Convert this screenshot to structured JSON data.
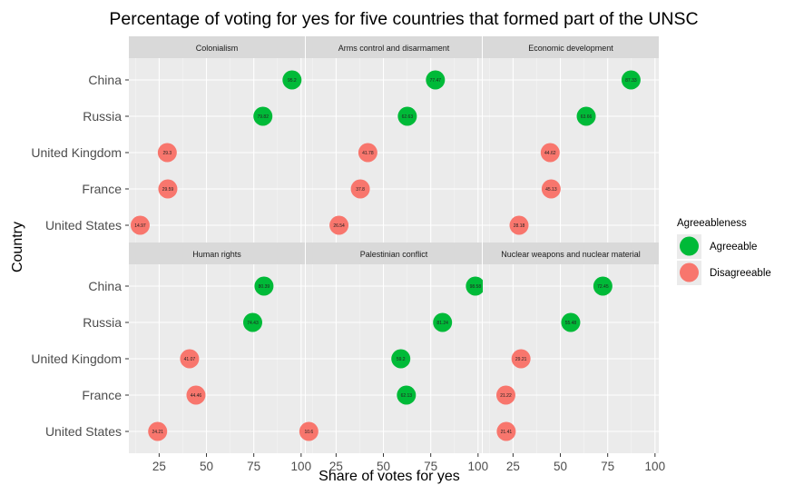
{
  "chart_data": {
    "type": "scatter",
    "title": "Percentage of voting for yes for five countries that formed part of the UNSC",
    "xlabel": "Share of votes for yes",
    "ylabel": "Country",
    "countries": [
      "China",
      "Russia",
      "United Kingdom",
      "France",
      "United States"
    ],
    "x_ticks": [
      25,
      50,
      75,
      100
    ],
    "xlim": [
      9,
      102
    ],
    "legend": {
      "title": "Agreeableness",
      "position": "right",
      "entries": [
        {
          "label": "Agreeable",
          "color": "#00ba38"
        },
        {
          "label": "Disagreeable",
          "color": "#f8766d"
        }
      ]
    },
    "panels": [
      {
        "title": "Colonialism",
        "points": [
          {
            "country": "China",
            "value": 95.2,
            "label": "95.2",
            "group": "Agreeable"
          },
          {
            "country": "Russia",
            "value": 79.82,
            "label": "79.82",
            "group": "Agreeable"
          },
          {
            "country": "United Kingdom",
            "value": 29.3,
            "label": "29.3",
            "group": "Disagreeable"
          },
          {
            "country": "France",
            "value": 29.59,
            "label": "29.59",
            "group": "Disagreeable"
          },
          {
            "country": "United States",
            "value": 14.97,
            "label": "14.97",
            "group": "Disagreeable"
          }
        ]
      },
      {
        "title": "Arms control and disarmament",
        "points": [
          {
            "country": "China",
            "value": 77.47,
            "label": "77.47",
            "group": "Agreeable"
          },
          {
            "country": "Russia",
            "value": 62.63,
            "label": "62.63",
            "group": "Agreeable"
          },
          {
            "country": "United Kingdom",
            "value": 41.78,
            "label": "41.78",
            "group": "Disagreeable"
          },
          {
            "country": "France",
            "value": 37.8,
            "label": "37.8",
            "group": "Disagreeable"
          },
          {
            "country": "United States",
            "value": 26.54,
            "label": "26.54",
            "group": "Disagreeable"
          }
        ]
      },
      {
        "title": "Economic development",
        "points": [
          {
            "country": "China",
            "value": 87.33,
            "label": "87.33",
            "group": "Agreeable"
          },
          {
            "country": "Russia",
            "value": 63.66,
            "label": "63.66",
            "group": "Agreeable"
          },
          {
            "country": "United Kingdom",
            "value": 44.62,
            "label": "44.62",
            "group": "Disagreeable"
          },
          {
            "country": "France",
            "value": 45.13,
            "label": "45.13",
            "group": "Disagreeable"
          },
          {
            "country": "United States",
            "value": 28.18,
            "label": "28.18",
            "group": "Disagreeable"
          }
        ]
      },
      {
        "title": "Human rights",
        "points": [
          {
            "country": "China",
            "value": 80.39,
            "label": "80.39",
            "group": "Agreeable"
          },
          {
            "country": "Russia",
            "value": 74.43,
            "label": "74.43",
            "group": "Agreeable"
          },
          {
            "country": "United Kingdom",
            "value": 41.07,
            "label": "41.07",
            "group": "Disagreeable"
          },
          {
            "country": "France",
            "value": 44.46,
            "label": "44.46",
            "group": "Disagreeable"
          },
          {
            "country": "United States",
            "value": 24.21,
            "label": "24.21",
            "group": "Disagreeable"
          }
        ]
      },
      {
        "title": "Palestinian conflict",
        "points": [
          {
            "country": "China",
            "value": 98.58,
            "label": "98.58",
            "group": "Agreeable"
          },
          {
            "country": "Russia",
            "value": 81.24,
            "label": "81.24",
            "group": "Agreeable"
          },
          {
            "country": "United Kingdom",
            "value": 59.2,
            "label": "59.2",
            "group": "Agreeable"
          },
          {
            "country": "France",
            "value": 62.13,
            "label": "62.13",
            "group": "Agreeable"
          },
          {
            "country": "United States",
            "value": 10.6,
            "label": "10.6",
            "group": "Disagreeable"
          }
        ]
      },
      {
        "title": "Nuclear weapons and nuclear material",
        "points": [
          {
            "country": "China",
            "value": 72.45,
            "label": "72.45",
            "group": "Agreeable"
          },
          {
            "country": "Russia",
            "value": 55.48,
            "label": "55.48",
            "group": "Agreeable"
          },
          {
            "country": "United Kingdom",
            "value": 29.21,
            "label": "29.21",
            "group": "Disagreeable"
          },
          {
            "country": "France",
            "value": 21.22,
            "label": "21.22",
            "group": "Disagreeable"
          },
          {
            "country": "United States",
            "value": 21.41,
            "label": "21.41",
            "group": "Disagreeable"
          }
        ]
      }
    ]
  }
}
